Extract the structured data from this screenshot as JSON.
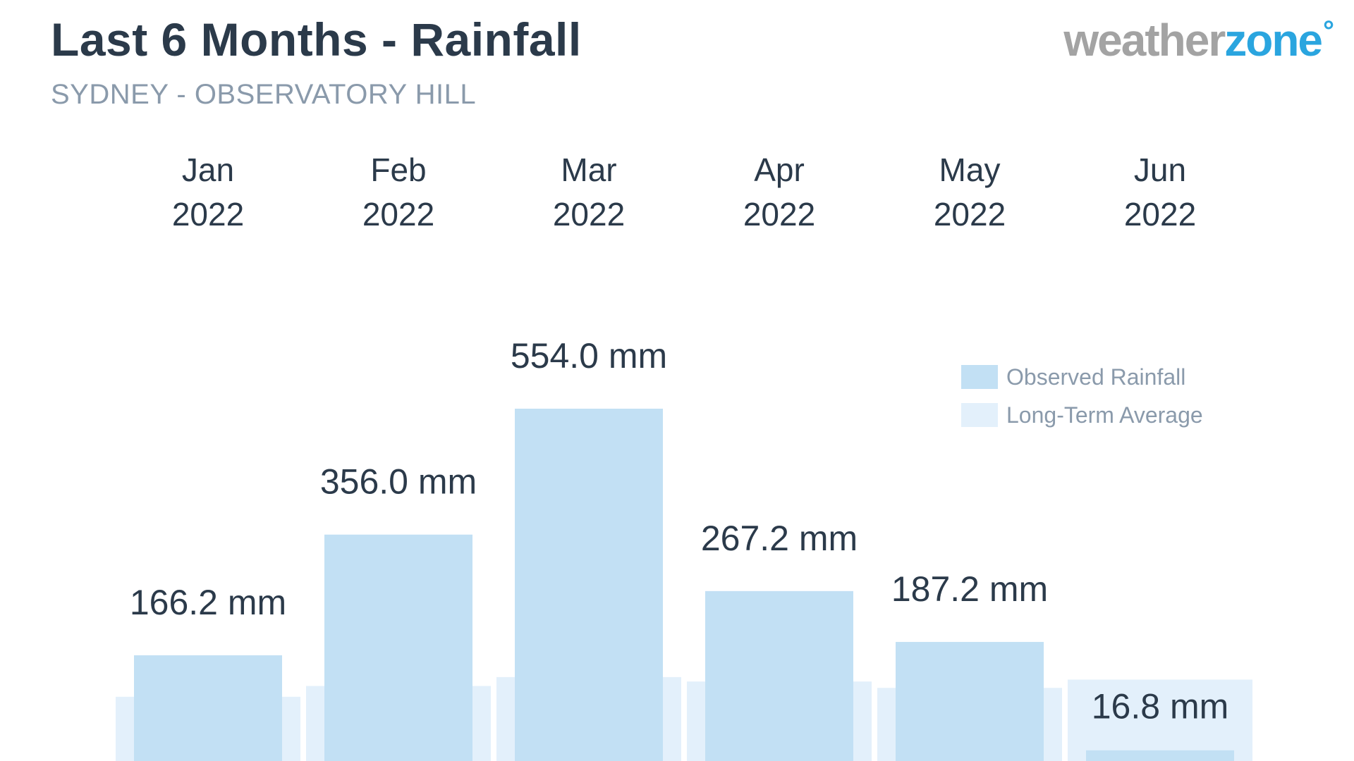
{
  "header": {
    "title": "Last 6 Months - Rainfall",
    "subtitle": "SYDNEY - OBSERVATORY HILL",
    "logo_part1": "weather",
    "logo_part2": "zone",
    "logo_degree": "°"
  },
  "colors": {
    "observed": "#c2e0f4",
    "average": "#e3f0fb",
    "text_dark": "#2b3a4a",
    "text_muted": "#8a9aab"
  },
  "chart_data": {
    "type": "bar",
    "categories": [
      {
        "month": "Jan",
        "year": "2022"
      },
      {
        "month": "Feb",
        "year": "2022"
      },
      {
        "month": "Mar",
        "year": "2022"
      },
      {
        "month": "Apr",
        "year": "2022"
      },
      {
        "month": "May",
        "year": "2022"
      },
      {
        "month": "Jun",
        "year": "2022"
      }
    ],
    "series": [
      {
        "name": "Observed Rainfall",
        "values": [
          166.2,
          356.0,
          554.0,
          267.2,
          187.2,
          16.8
        ],
        "labels": [
          "166.2 mm",
          "356.0 mm",
          "554.0 mm",
          "267.2 mm",
          "187.2 mm",
          "16.8 mm"
        ]
      },
      {
        "name": "Long-Term Average",
        "values": [
          101,
          118,
          132,
          125,
          115,
          128
        ]
      }
    ],
    "unit": "mm",
    "ylim": [
      0,
      554
    ],
    "grid": false,
    "legend_position": "right"
  }
}
